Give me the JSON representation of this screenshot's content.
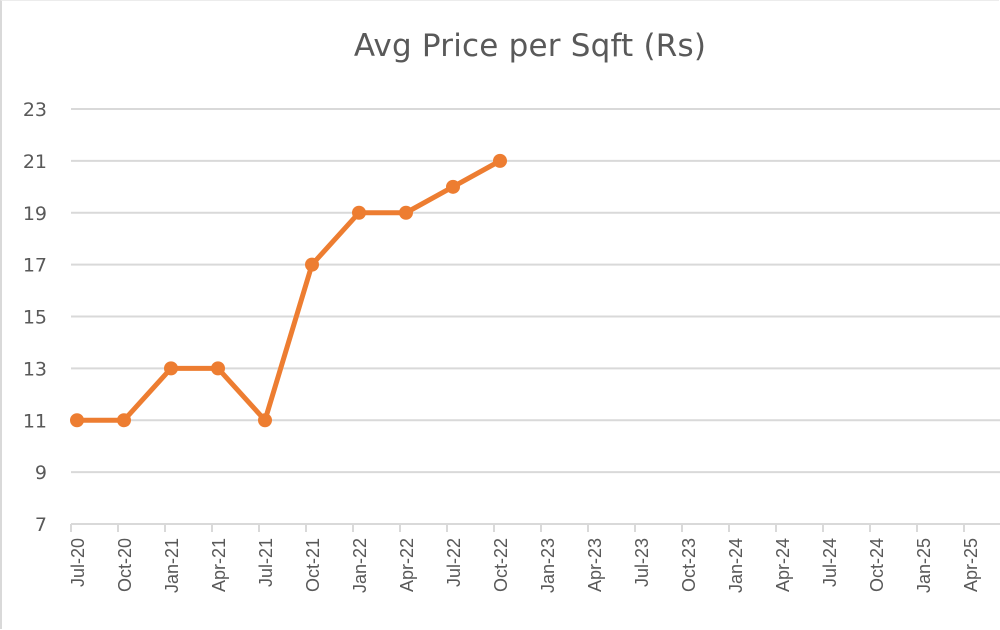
{
  "chart": {
    "title": "Avg Price per Sqft (Rs)",
    "line_color": "#ED7D31",
    "grid_color": "#D9D9D9",
    "text_color": "#595959"
  },
  "chart_data": {
    "type": "line",
    "title": "Avg Price per Sqft (Rs)",
    "xlabel": "",
    "ylabel": "",
    "x_tick_labels": [
      "Jul-20",
      "Oct-20",
      "Jan-21",
      "Apr-21",
      "Jul-21",
      "Oct-21",
      "Jan-22",
      "Apr-22",
      "Jul-22",
      "Oct-22",
      "Jan-23",
      "Apr-23",
      "Jul-23",
      "Oct-23",
      "Jan-24",
      "Apr-24",
      "Jul-24",
      "Oct-24",
      "Jan-25",
      "Apr-25"
    ],
    "y_ticks": [
      7,
      9,
      11,
      13,
      15,
      17,
      19,
      21,
      23
    ],
    "ylim": [
      7,
      23
    ],
    "grid": true,
    "legend": "none",
    "series": [
      {
        "name": "Avg Price per Sqft (Rs)",
        "x": [
          "Jul-20",
          "Oct-20",
          "Jan-21",
          "Apr-21",
          "Jul-21",
          "Oct-21",
          "Jan-22",
          "Apr-22",
          "Jul-22",
          "Oct-22"
        ],
        "values": [
          11,
          11,
          13,
          13,
          11,
          17,
          19,
          19,
          20,
          21
        ],
        "marker": "circle",
        "color": "#ED7D31"
      }
    ]
  }
}
